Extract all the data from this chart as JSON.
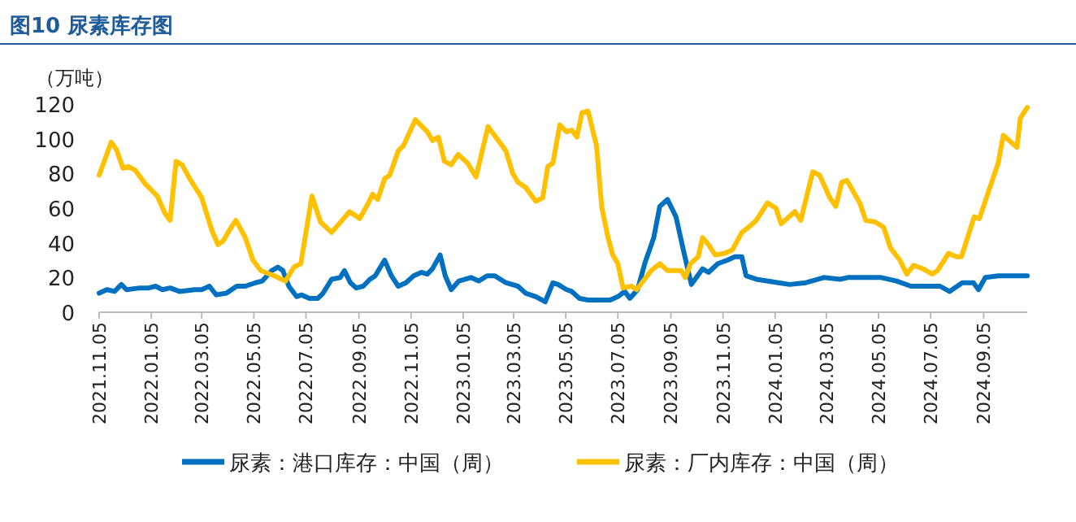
{
  "chart_data": {
    "type": "line",
    "title": "图10 尿素库存图",
    "ylabel": "（万吨）",
    "legend": "bottom",
    "grid": false,
    "marker": "none",
    "line_style": "solid",
    "xlim": [
      "2021-11-05",
      "2024-10-26"
    ],
    "ylim": [
      0,
      120
    ],
    "yticks": [
      0,
      20,
      40,
      60,
      80,
      100,
      120
    ],
    "xticks": [
      {
        "value": "2021-11-05",
        "label": "2021.11.05"
      },
      {
        "value": "2022-01-05",
        "label": "2022.01.05"
      },
      {
        "value": "2022-03-05",
        "label": "2022.03.05"
      },
      {
        "value": "2022-05-05",
        "label": "2022.05.05"
      },
      {
        "value": "2022-07-05",
        "label": "2022.07.05"
      },
      {
        "value": "2022-09-05",
        "label": "2022.09.05"
      },
      {
        "value": "2022-11-05",
        "label": "2022.11.05"
      },
      {
        "value": "2023-01-05",
        "label": "2023.01.05"
      },
      {
        "value": "2023-03-05",
        "label": "2023.03.05"
      },
      {
        "value": "2023-05-05",
        "label": "2023.05.05"
      },
      {
        "value": "2023-07-05",
        "label": "2023.07.05"
      },
      {
        "value": "2023-09-05",
        "label": "2023.09.05"
      },
      {
        "value": "2023-11-05",
        "label": "2023.11.05"
      },
      {
        "value": "2024-01-05",
        "label": "2024.01.05"
      },
      {
        "value": "2024-03-05",
        "label": "2024.03.05"
      },
      {
        "value": "2024-05-05",
        "label": "2024.05.05"
      },
      {
        "value": "2024-07-05",
        "label": "2024.07.05"
      },
      {
        "value": "2024-09-05",
        "label": "2024.09.05"
      }
    ],
    "series": [
      {
        "name": "尿素：港口库存：中国（周）",
        "color": "#0070c0",
        "x": [
          "2021-11-05",
          "2021-11-14",
          "2021-11-23",
          "2021-12-01",
          "2021-12-07",
          "2021-12-23",
          "2022-01-02",
          "2022-01-10",
          "2022-01-18",
          "2022-01-27",
          "2022-02-07",
          "2022-02-25",
          "2022-03-05",
          "2022-03-14",
          "2022-03-22",
          "2022-04-03",
          "2022-04-15",
          "2022-04-25",
          "2022-05-07",
          "2022-05-15",
          "2022-05-26",
          "2022-06-02",
          "2022-06-08",
          "2022-06-15",
          "2022-06-24",
          "2022-06-30",
          "2022-07-09",
          "2022-07-19",
          "2022-07-25",
          "2022-08-04",
          "2022-08-14",
          "2022-08-19",
          "2022-08-26",
          "2022-09-02",
          "2022-09-10",
          "2022-09-18",
          "2022-09-24",
          "2022-10-05",
          "2022-10-13",
          "2022-10-21",
          "2022-10-30",
          "2022-11-08",
          "2022-11-17",
          "2022-11-24",
          "2022-11-30",
          "2022-12-09",
          "2022-12-15",
          "2022-12-22",
          "2022-12-31",
          "2023-01-14",
          "2023-01-23",
          "2023-02-02",
          "2023-02-11",
          "2023-02-24",
          "2023-03-10",
          "2023-03-19",
          "2023-03-31",
          "2023-04-11",
          "2023-04-20",
          "2023-04-26",
          "2023-05-06",
          "2023-05-12",
          "2023-05-21",
          "2023-05-31",
          "2023-06-26",
          "2023-07-05",
          "2023-07-13",
          "2023-07-19",
          "2023-07-28",
          "2023-08-06",
          "2023-08-16",
          "2023-08-23",
          "2023-09-01",
          "2023-09-11",
          "2023-09-20",
          "2023-09-29",
          "2023-10-12",
          "2023-10-19",
          "2023-10-30",
          "2023-11-10",
          "2023-11-19",
          "2023-11-27",
          "2023-12-02",
          "2023-12-14",
          "2024-01-09",
          "2024-01-22",
          "2024-02-10",
          "2024-03-02",
          "2024-03-21",
          "2024-03-30",
          "2024-05-08",
          "2024-05-26",
          "2024-06-12",
          "2024-06-27",
          "2024-07-16",
          "2024-07-27",
          "2024-08-11",
          "2024-08-24",
          "2024-08-30",
          "2024-09-07",
          "2024-09-22",
          "2024-10-01",
          "2024-10-26"
        ],
        "values": [
          11,
          13,
          12,
          16,
          13,
          14,
          14,
          15,
          13,
          14,
          12,
          13,
          13,
          15,
          10,
          11,
          15,
          15,
          17,
          18,
          24,
          26,
          24,
          15,
          9,
          10,
          8,
          8,
          11,
          19,
          20,
          24,
          17,
          14,
          15,
          19,
          21,
          30,
          21,
          15,
          17,
          21,
          23,
          22,
          25,
          33,
          21,
          13,
          18,
          20,
          18,
          21,
          21,
          17,
          15,
          11,
          9,
          6,
          17,
          16,
          13,
          12,
          8,
          7,
          7,
          9,
          12,
          8,
          13,
          29,
          43,
          61,
          65,
          55,
          35,
          16,
          25,
          23,
          28,
          30,
          32,
          32,
          21,
          19,
          17,
          16,
          17,
          20,
          19,
          20,
          20,
          18,
          15,
          15,
          15,
          12,
          17,
          17,
          13,
          20,
          21,
          21,
          21
        ]
      },
      {
        "name": "尿素：厂内库存：中国（周）",
        "color": "#ffc000",
        "x": [
          "2021-11-05",
          "2021-11-19",
          "2021-11-25",
          "2021-12-03",
          "2021-12-09",
          "2021-12-17",
          "2021-12-29",
          "2022-01-12",
          "2022-01-21",
          "2022-01-27",
          "2022-02-03",
          "2022-02-10",
          "2022-02-19",
          "2022-03-05",
          "2022-03-17",
          "2022-03-24",
          "2022-03-30",
          "2022-04-06",
          "2022-04-14",
          "2022-04-25",
          "2022-05-04",
          "2022-05-13",
          "2022-05-29",
          "2022-06-11",
          "2022-06-21",
          "2022-06-29",
          "2022-07-12",
          "2022-07-22",
          "2022-08-04",
          "2022-08-11",
          "2022-08-25",
          "2022-09-06",
          "2022-09-16",
          "2022-09-21",
          "2022-09-27",
          "2022-10-05",
          "2022-10-11",
          "2022-10-21",
          "2022-10-27",
          "2022-11-10",
          "2022-11-24",
          "2022-11-30",
          "2022-12-07",
          "2022-12-14",
          "2022-12-22",
          "2022-12-30",
          "2023-01-10",
          "2023-01-20",
          "2023-02-03",
          "2023-02-15",
          "2023-02-24",
          "2023-03-04",
          "2023-03-10",
          "2023-03-19",
          "2023-03-31",
          "2023-04-08",
          "2023-04-14",
          "2023-04-20",
          "2023-04-28",
          "2023-05-06",
          "2023-05-12",
          "2023-05-18",
          "2023-05-24",
          "2023-05-31",
          "2023-06-10",
          "2023-06-16",
          "2023-06-23",
          "2023-06-29",
          "2023-07-05",
          "2023-07-11",
          "2023-07-21",
          "2023-07-27",
          "2023-08-02",
          "2023-08-13",
          "2023-08-23",
          "2023-09-01",
          "2023-09-11",
          "2023-09-17",
          "2023-09-22",
          "2023-09-28",
          "2023-10-07",
          "2023-10-12",
          "2023-10-19",
          "2023-10-27",
          "2023-11-07",
          "2023-11-16",
          "2023-11-27",
          "2023-12-05",
          "2023-12-14",
          "2023-12-27",
          "2024-01-06",
          "2024-01-12",
          "2024-01-28",
          "2024-02-04",
          "2024-02-18",
          "2024-02-26",
          "2024-03-09",
          "2024-03-16",
          "2024-03-23",
          "2024-03-29",
          "2024-04-13",
          "2024-04-20",
          "2024-05-01",
          "2024-05-11",
          "2024-05-19",
          "2024-05-30",
          "2024-06-07",
          "2024-06-15",
          "2024-06-26",
          "2024-07-07",
          "2024-07-13",
          "2024-07-26",
          "2024-08-04",
          "2024-08-10",
          "2024-08-25",
          "2024-08-31",
          "2024-09-11",
          "2024-09-22",
          "2024-09-28",
          "2024-10-14",
          "2024-10-18",
          "2024-10-26"
        ],
        "values": [
          79,
          98,
          94,
          83,
          84,
          82,
          74,
          67,
          57,
          53,
          87,
          85,
          77,
          66,
          47,
          39,
          41,
          47,
          53,
          43,
          30,
          24,
          21,
          18,
          26,
          28,
          67,
          52,
          46,
          50,
          58,
          54,
          63,
          68,
          65,
          77,
          79,
          93,
          96,
          111,
          104,
          99,
          101,
          87,
          85,
          91,
          86,
          78,
          107,
          99,
          93,
          80,
          75,
          72,
          64,
          66,
          84,
          86,
          108,
          104,
          105,
          101,
          115,
          116,
          96,
          61,
          44,
          33,
          28,
          14,
          15,
          13,
          17,
          24,
          28,
          24,
          24,
          24,
          20,
          28,
          32,
          43,
          39,
          33,
          34,
          36,
          46,
          49,
          53,
          63,
          60,
          51,
          58,
          53,
          81,
          79,
          66,
          61,
          75,
          76,
          63,
          53,
          52,
          49,
          37,
          30,
          22,
          27,
          25,
          22,
          24,
          34,
          32,
          32,
          55,
          54,
          70,
          86,
          102,
          95,
          112,
          118
        ]
      }
    ]
  }
}
